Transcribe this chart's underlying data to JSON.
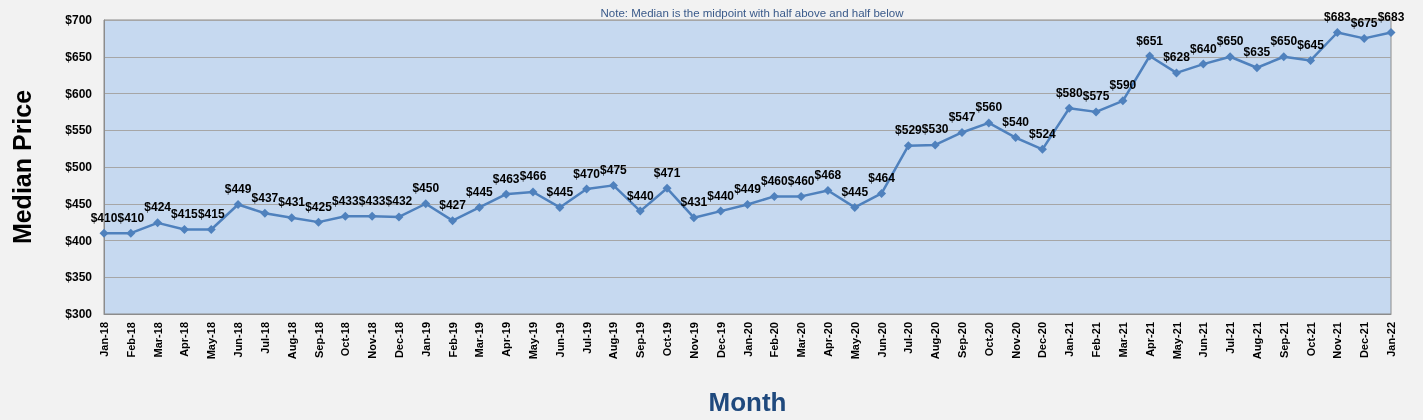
{
  "chart_data": {
    "type": "line",
    "annotations": [
      "Note: Median is the midpoint with half above and half below"
    ],
    "xlabel": "Month",
    "ylabel": "Median Price",
    "categories": [
      "Jan-18",
      "Feb-18",
      "Mar-18",
      "Apr-18",
      "May-18",
      "Jun-18",
      "Jul-18",
      "Aug-18",
      "Sep-18",
      "Oct-18",
      "Nov-18",
      "Dec-18",
      "Jan-19",
      "Feb-19",
      "Mar-19",
      "Apr-19",
      "May-19",
      "Jun-19",
      "Jul-19",
      "Aug-19",
      "Sep-19",
      "Oct-19",
      "Nov-19",
      "Dec-19",
      "Jan-20",
      "Feb-20",
      "Mar-20",
      "Apr-20",
      "May-20",
      "Jun-20",
      "Jul-20",
      "Aug-20",
      "Sep-20",
      "Oct-20",
      "Nov-20",
      "Dec-20",
      "Jan-21",
      "Feb-21",
      "Mar-21",
      "Apr-21",
      "May-21",
      "Jun-21",
      "Jul-21",
      "Aug-21",
      "Sep-21",
      "Oct-21",
      "Nov-21",
      "Dec-21",
      "Jan-22"
    ],
    "values": [
      410,
      410,
      424,
      415,
      415,
      449,
      437,
      431,
      425,
      433,
      433,
      432,
      450,
      427,
      445,
      463,
      466,
      445,
      470,
      475,
      440,
      471,
      431,
      440,
      449,
      460,
      460,
      468,
      445,
      464,
      529,
      530,
      547,
      560,
      540,
      524,
      580,
      575,
      590,
      651,
      628,
      640,
      650,
      635,
      650,
      645,
      683,
      675,
      683
    ],
    "value_labels": [
      "$410",
      "$410",
      "$424",
      "$415",
      "$415",
      "$449",
      "$437",
      "$431",
      "$425",
      "$433",
      "$433",
      "$432",
      "$450",
      "$427",
      "$445",
      "$463",
      "$466",
      "$445",
      "$470",
      "$475",
      "$440",
      "$471",
      "$431",
      "$440",
      "$449",
      "$460",
      "$460",
      "$468",
      "$445",
      "$464",
      "$529",
      "$530",
      "$547",
      "$560",
      "$540",
      "$524",
      "$580",
      "$575",
      "$590",
      "$651",
      "$628",
      "$640",
      "$650",
      "$635",
      "$650",
      "$645",
      "$683",
      "$675",
      "$683"
    ],
    "color": "#4f81bd",
    "marker": "diamond",
    "ylim": [
      300,
      700
    ],
    "yticks": [
      {
        "value": 300,
        "label": "$300"
      },
      {
        "value": 350,
        "label": "$350"
      },
      {
        "value": 400,
        "label": "$400"
      },
      {
        "value": 450,
        "label": "$450"
      },
      {
        "value": 500,
        "label": "$500"
      },
      {
        "value": 550,
        "label": "$550"
      },
      {
        "value": 600,
        "label": "$600"
      },
      {
        "value": 650,
        "label": "$650"
      },
      {
        "value": 700,
        "label": "$700"
      }
    ],
    "grid": "y"
  }
}
